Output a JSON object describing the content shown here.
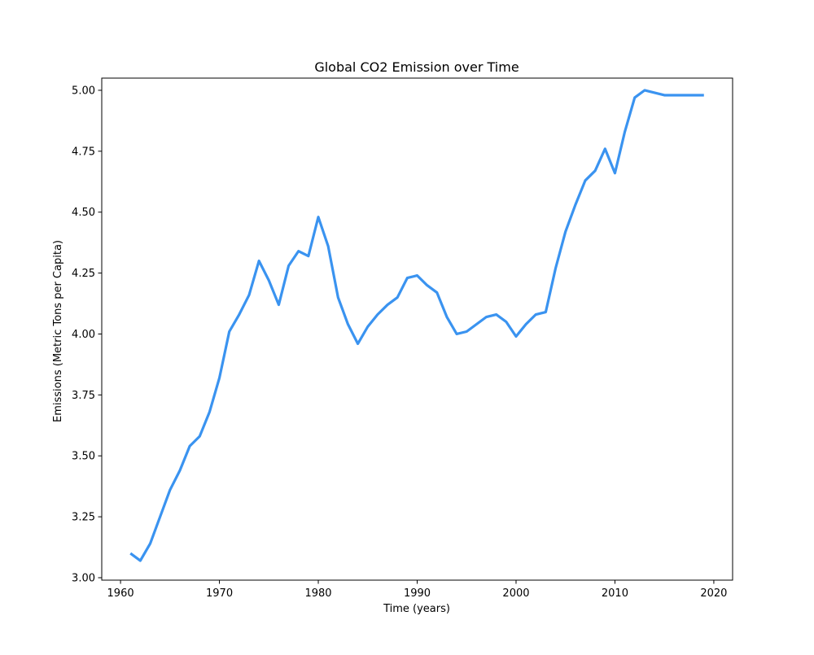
{
  "chart_data": {
    "type": "line",
    "title": "Global CO2 Emission over Time",
    "xlabel": "Time (years)",
    "ylabel": "Emissions (Metric Tons per Capita)",
    "xlim": [
      1958.1,
      2021.9
    ],
    "ylim": [
      2.99,
      5.05
    ],
    "xticks": [
      1960,
      1970,
      1980,
      1990,
      2000,
      2010,
      2020
    ],
    "yticks": [
      3.0,
      3.25,
      3.5,
      3.75,
      4.0,
      4.25,
      4.5,
      4.75,
      5.0
    ],
    "grid": false,
    "series": [
      {
        "color": "#3a93f0",
        "x": [
          1961,
          1962,
          1963,
          1964,
          1965,
          1966,
          1967,
          1968,
          1969,
          1970,
          1971,
          1972,
          1973,
          1974,
          1975,
          1976,
          1977,
          1978,
          1979,
          1980,
          1981,
          1982,
          1983,
          1984,
          1985,
          1986,
          1987,
          1988,
          1989,
          1990,
          1991,
          1992,
          1993,
          1994,
          1995,
          1996,
          1997,
          1998,
          1999,
          2000,
          2001,
          2002,
          2003,
          2004,
          2005,
          2006,
          2007,
          2008,
          2009,
          2010,
          2011,
          2012,
          2013,
          2014,
          2015,
          2016,
          2017,
          2018,
          2019
        ],
        "y": [
          3.1,
          3.07,
          3.14,
          3.25,
          3.36,
          3.44,
          3.54,
          3.58,
          3.68,
          3.82,
          4.01,
          4.08,
          4.16,
          4.3,
          4.22,
          4.12,
          4.28,
          4.34,
          4.32,
          4.48,
          4.36,
          4.15,
          4.04,
          3.96,
          4.03,
          4.08,
          4.12,
          4.15,
          4.23,
          4.24,
          4.2,
          4.17,
          4.07,
          4.0,
          4.01,
          4.04,
          4.07,
          4.08,
          4.05,
          3.99,
          4.04,
          4.08,
          4.09,
          4.27,
          4.42,
          4.53,
          4.63,
          4.67,
          4.76,
          4.66,
          4.83,
          4.97,
          5.0,
          4.99,
          4.98,
          4.98,
          4.98,
          4.98,
          4.98
        ]
      }
    ]
  }
}
